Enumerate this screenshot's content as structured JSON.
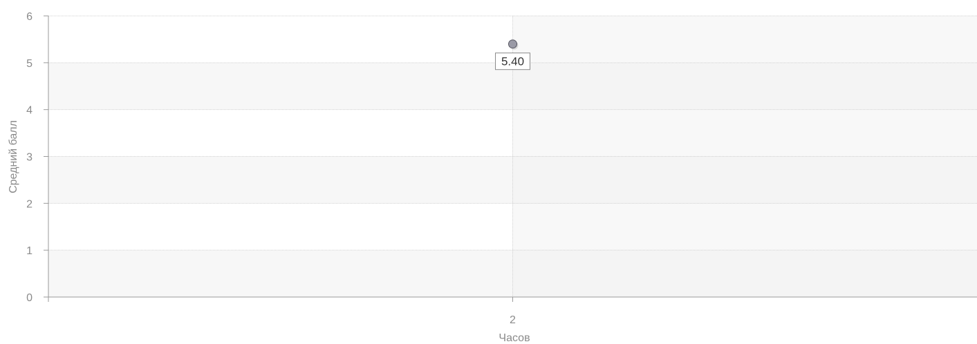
{
  "chart_data": {
    "type": "scatter",
    "title": "",
    "xlabel": "Часов",
    "ylabel": "Средний балл",
    "x_categories": [
      "2"
    ],
    "points": [
      {
        "x": "2",
        "y": 5.4,
        "label": "5.40"
      }
    ],
    "ylim": [
      0,
      6
    ],
    "y_ticks": [
      0,
      1,
      2,
      3,
      4,
      5,
      6
    ],
    "grid": true,
    "legend": "none",
    "colors": {
      "point_fill": "#9a9aa6",
      "point_stroke": "#555560",
      "grid": "#cfcfcf",
      "axis": "#9a9a9a",
      "band_light": "#ffffff",
      "band_shade": "#f7f7f7",
      "band_right_shade": "#f2f2f2"
    }
  }
}
